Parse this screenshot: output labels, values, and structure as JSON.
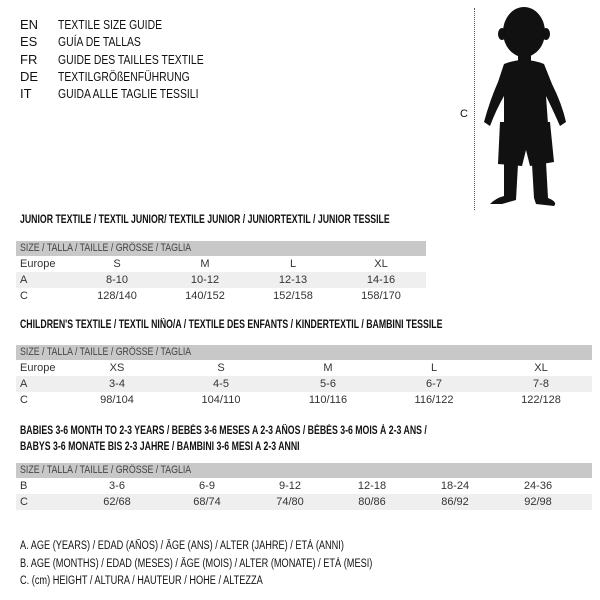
{
  "languages": [
    {
      "code": "EN",
      "title": "TEXTILE SIZE GUIDE"
    },
    {
      "code": "ES",
      "title": "GUÍA DE TALLAS"
    },
    {
      "code": "FR",
      "title": "GUIDE DES TAILLES TEXTILE"
    },
    {
      "code": "DE",
      "title": "TEXTILGRÖßENFÜHRUNG"
    },
    {
      "code": "IT",
      "title": "GUIDA ALLE TAGLIE TESSILI"
    }
  ],
  "figure": {
    "label": "C",
    "icon": "child-silhouette-icon"
  },
  "tables": [
    {
      "title": "JUNIOR TEXTILE / TEXTIL JUNIOR/ TEXTILE JUNIOR / JUNIORTEXTIL / JUNIOR TESSILE",
      "header": "SIZE / TALLA / TAILLE / GRÖSSE / TAGLIA",
      "rows": [
        {
          "label": "Europe",
          "cells": [
            "S",
            "M",
            "L",
            "XL"
          ]
        },
        {
          "label": "A",
          "cells": [
            "8-10",
            "10-12",
            "12-13",
            "14-16"
          ]
        },
        {
          "label": "C",
          "cells": [
            "128/140",
            "140/152",
            "152/158",
            "158/170"
          ]
        }
      ]
    },
    {
      "title": "CHILDREN'S TEXTILE / TEXTIL NIÑO/A / TEXTILE DES ENFANTS / KINDERTEXTIL / BAMBINI TESSILE",
      "header": "SIZE / TALLA / TAILLE / GRÖSSE / TAGLIA",
      "rows": [
        {
          "label": "Europe",
          "cells": [
            "XS",
            "S",
            "M",
            "L",
            "XL"
          ]
        },
        {
          "label": "A",
          "cells": [
            "3-4",
            "4-5",
            "5-6",
            "6-7",
            "7-8"
          ]
        },
        {
          "label": "C",
          "cells": [
            "98/104",
            "104/110",
            "110/116",
            "116/122",
            "122/128"
          ]
        }
      ]
    },
    {
      "title": "BABIES 3-6 MONTH TO 2-3 YEARS / BEBÉS 3-6 MESES A 2-3 AÑOS / BÉBÉS 3-6 MOIS À 2-3 ANS /",
      "title2": "BABYS 3-6 MONATE BIS 2-3 JAHRE / BAMBINI 3-6 MESI A 2-3 ANNI",
      "header": "SIZE / TALLA / TAILLE / GRÖSSE / TAGLIA",
      "rows": [
        {
          "label": "B",
          "cells": [
            "3-6",
            "6-9",
            "9-12",
            "12-18",
            "18-24",
            "24-36"
          ]
        },
        {
          "label": "C",
          "cells": [
            "62/68",
            "68/74",
            "74/80",
            "80/86",
            "86/92",
            "92/98"
          ]
        }
      ]
    }
  ],
  "legend": [
    "A. AGE (YEARS) / EDAD (AÑOS) / ÂGE (ANS) / ALTER (JAHRE) / ETÀ (ANNI)",
    "B. AGE (MONTHS) / EDAD (MESES) / ÂGE (MOIS) / ALTER (MONATE) / ETÀ (MESI)",
    "C. (cm) HEIGHT / ALTURA / HAUTEUR / HÖHE / ALTEZZA"
  ]
}
